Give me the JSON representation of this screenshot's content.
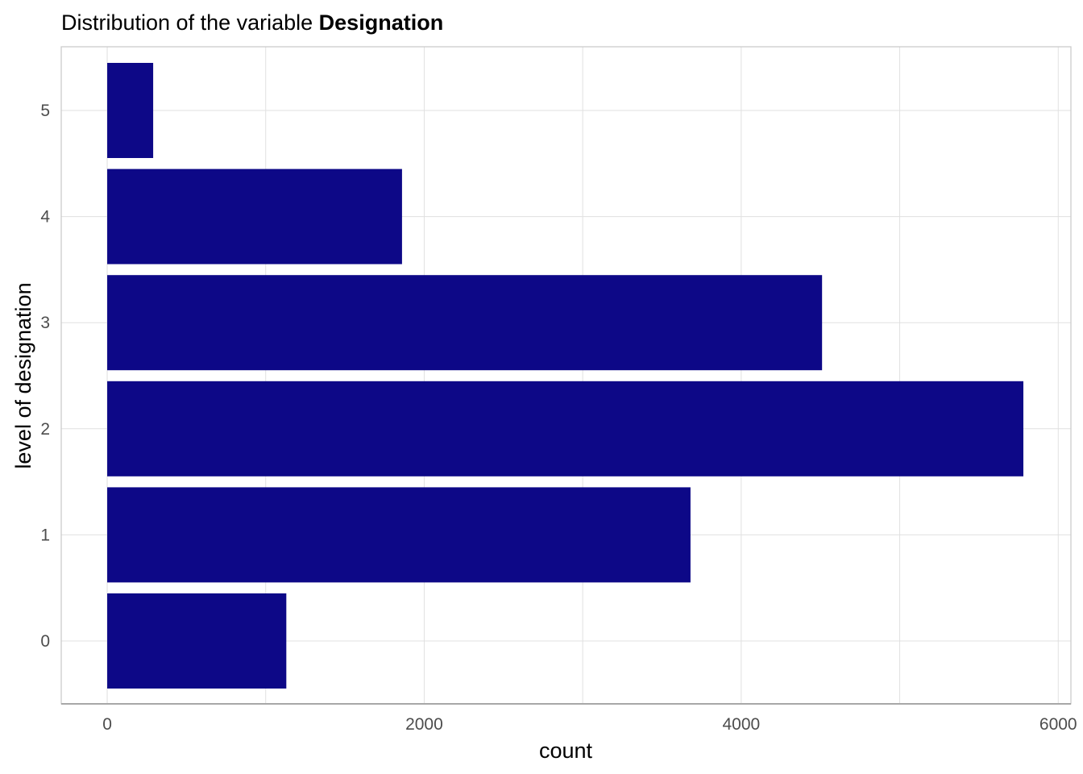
{
  "chart_data": {
    "type": "bar",
    "orientation": "horizontal",
    "title": {
      "prefix": "Distribution of the variable ",
      "emphasis": "Designation"
    },
    "xlabel": "count",
    "ylabel": "level of designation",
    "categories": [
      "0",
      "1",
      "2",
      "3",
      "4",
      "5"
    ],
    "values": [
      1130,
      3680,
      5780,
      4510,
      1860,
      290
    ],
    "xlim": [
      -290,
      6080
    ],
    "xticks": [
      0,
      2000,
      4000,
      6000
    ],
    "xtick_labels": [
      "0",
      "2000",
      "4000",
      "6000"
    ],
    "bar_color": "#0d0887",
    "grid": true,
    "legend": "none"
  }
}
